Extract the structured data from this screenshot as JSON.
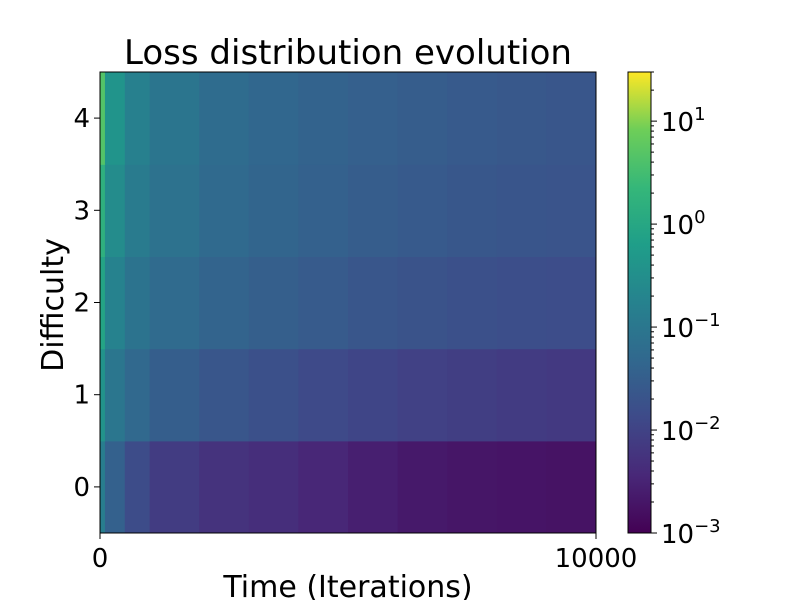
{
  "chart_data": {
    "type": "heatmap",
    "title": "Loss distribution evolution",
    "xlabel": "Time (Iterations)",
    "ylabel": "Difficulty",
    "xlim": [
      0,
      10000
    ],
    "ylim": [
      -0.5,
      4.5
    ],
    "x_ticks": [
      "0",
      "10000"
    ],
    "y_ticks": [
      "0",
      "1",
      "2",
      "3",
      "4"
    ],
    "colormap": "viridis",
    "color_scale": "log",
    "color_range": [
      0.001,
      30
    ],
    "colorbar_ticks": [
      {
        "base": "10",
        "exp": "1"
      },
      {
        "base": "10",
        "exp": "0"
      },
      {
        "base": "10",
        "exp": "−1"
      },
      {
        "base": "10",
        "exp": "−2"
      },
      {
        "base": "10",
        "exp": "−3"
      }
    ],
    "difficulty_levels": [
      0,
      1,
      2,
      3,
      4
    ],
    "time_points": [
      0,
      100,
      500,
      1000,
      2000,
      3000,
      4000,
      5000,
      6000,
      7000,
      8000,
      9000,
      10000
    ],
    "loss_by_difficulty": [
      {
        "difficulty": 0,
        "values": [
          0.3,
          0.06,
          0.02,
          0.01,
          0.006,
          0.005,
          0.004,
          0.003,
          0.0025,
          0.002,
          0.002,
          0.0018,
          0.0018
        ]
      },
      {
        "difficulty": 1,
        "values": [
          1.0,
          0.15,
          0.06,
          0.04,
          0.025,
          0.02,
          0.015,
          0.012,
          0.01,
          0.009,
          0.008,
          0.007,
          0.007
        ]
      },
      {
        "difficulty": 2,
        "values": [
          2.5,
          0.3,
          0.1,
          0.07,
          0.045,
          0.035,
          0.03,
          0.025,
          0.02,
          0.018,
          0.016,
          0.015,
          0.015
        ]
      },
      {
        "difficulty": 3,
        "values": [
          5.0,
          0.5,
          0.15,
          0.1,
          0.06,
          0.045,
          0.038,
          0.032,
          0.028,
          0.025,
          0.022,
          0.02,
          0.02
        ]
      },
      {
        "difficulty": 4,
        "values": [
          25.0,
          0.8,
          0.2,
          0.12,
          0.07,
          0.05,
          0.042,
          0.036,
          0.031,
          0.028,
          0.025,
          0.023,
          0.022
        ]
      }
    ]
  }
}
